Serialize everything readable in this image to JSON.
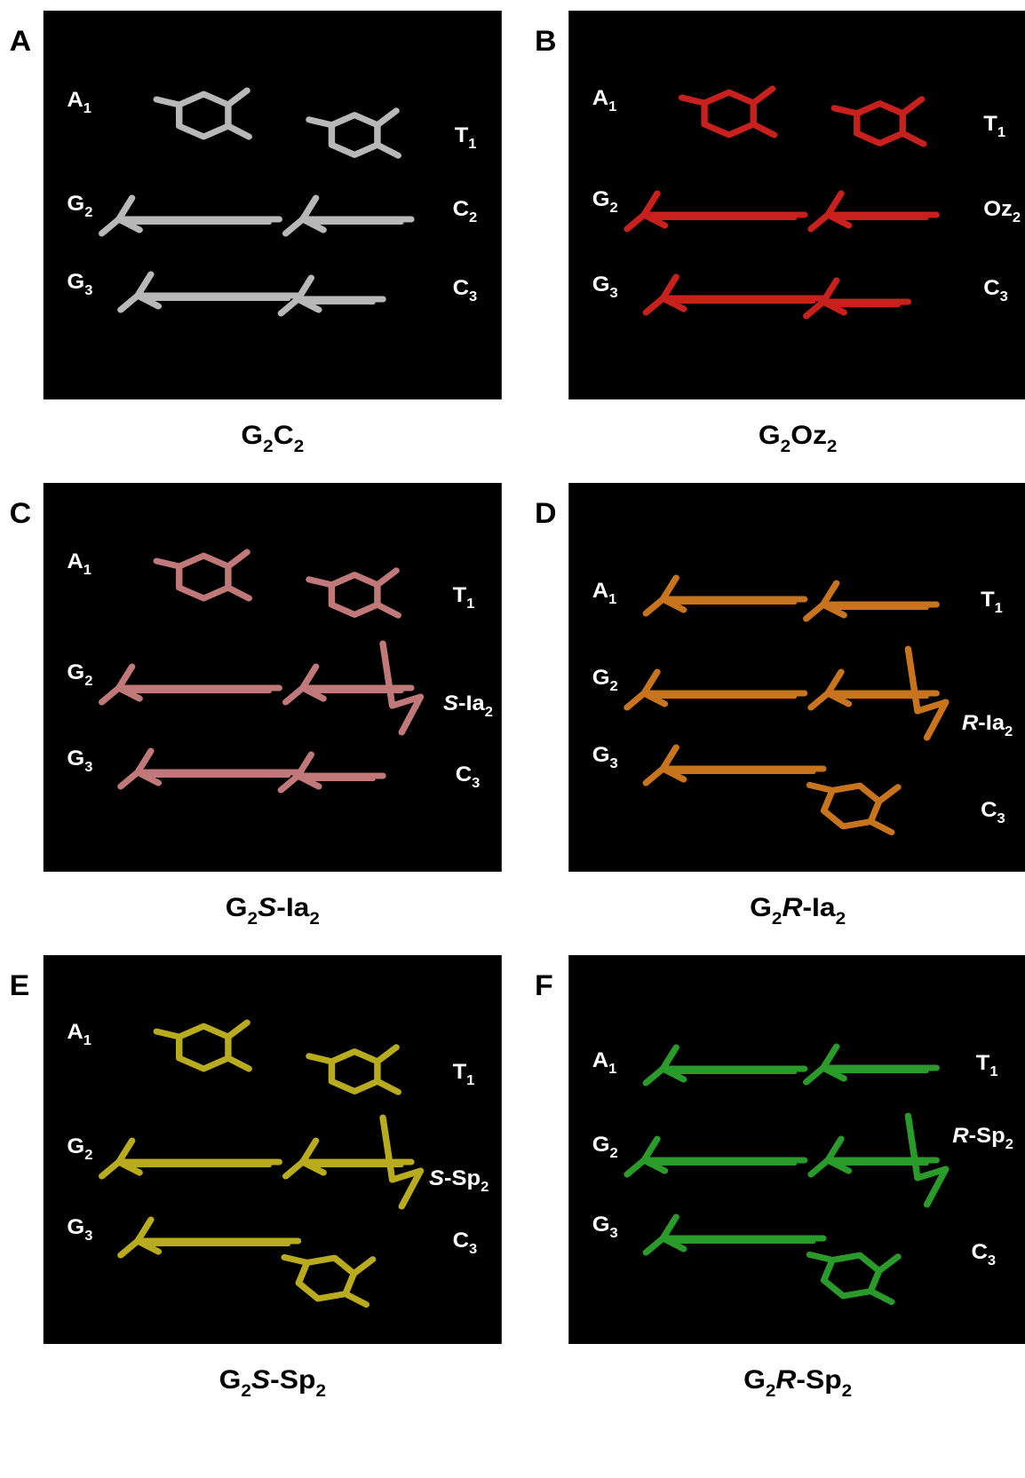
{
  "panels": [
    {
      "letter": "A",
      "color": "#b8b8b8",
      "left_labels": [
        [
          {
            "text": "A"
          },
          {
            "text": "1",
            "sub": true
          }
        ],
        [
          {
            "text": "G"
          },
          {
            "text": "2",
            "sub": true
          }
        ],
        [
          {
            "text": "G"
          },
          {
            "text": "3",
            "sub": true
          }
        ]
      ],
      "right_labels": [
        [
          {
            "text": "T"
          },
          {
            "text": "1",
            "sub": true
          }
        ],
        [
          {
            "text": "C"
          },
          {
            "text": "2",
            "sub": true
          }
        ],
        [
          {
            "text": "C"
          },
          {
            "text": "3",
            "sub": true
          }
        ]
      ],
      "caption": [
        {
          "text": "G"
        },
        {
          "text": "2",
          "sub": true
        },
        {
          "text": "C"
        },
        {
          "text": "2",
          "sub": true
        }
      ]
    },
    {
      "letter": "B",
      "color": "#c8201c",
      "left_labels": [
        [
          {
            "text": "A"
          },
          {
            "text": "1",
            "sub": true
          }
        ],
        [
          {
            "text": "G"
          },
          {
            "text": "2",
            "sub": true
          }
        ],
        [
          {
            "text": "G"
          },
          {
            "text": "3",
            "sub": true
          }
        ]
      ],
      "right_labels": [
        [
          {
            "text": "T"
          },
          {
            "text": "1",
            "sub": true
          }
        ],
        [
          {
            "text": "Oz"
          },
          {
            "text": "2",
            "sub": true
          }
        ],
        [
          {
            "text": "C"
          },
          {
            "text": "3",
            "sub": true
          }
        ]
      ],
      "caption": [
        {
          "text": "G"
        },
        {
          "text": "2",
          "sub": true
        },
        {
          "text": "Oz"
        },
        {
          "text": "2",
          "sub": true
        }
      ]
    },
    {
      "letter": "C",
      "color": "#c07878",
      "left_labels": [
        [
          {
            "text": "A"
          },
          {
            "text": "1",
            "sub": true
          }
        ],
        [
          {
            "text": "G"
          },
          {
            "text": "2",
            "sub": true
          }
        ],
        [
          {
            "text": "G"
          },
          {
            "text": "3",
            "sub": true
          }
        ]
      ],
      "right_labels": [
        [
          {
            "text": "T"
          },
          {
            "text": "1",
            "sub": true
          }
        ],
        [
          {
            "text": "S",
            "italic": true
          },
          {
            "text": "-Ia"
          },
          {
            "text": "2",
            "sub": true
          }
        ],
        [
          {
            "text": "C"
          },
          {
            "text": "3",
            "sub": true
          }
        ]
      ],
      "caption": [
        {
          "text": "G"
        },
        {
          "text": "2",
          "sub": true
        },
        {
          "text": "S",
          "italic": true
        },
        {
          "text": "-Ia"
        },
        {
          "text": "2",
          "sub": true
        }
      ]
    },
    {
      "letter": "D",
      "color": "#c8741e",
      "left_labels": [
        [
          {
            "text": "A"
          },
          {
            "text": "1",
            "sub": true
          }
        ],
        [
          {
            "text": "G"
          },
          {
            "text": "2",
            "sub": true
          }
        ],
        [
          {
            "text": "G"
          },
          {
            "text": "3",
            "sub": true
          }
        ]
      ],
      "right_labels": [
        [
          {
            "text": "T"
          },
          {
            "text": "1",
            "sub": true
          }
        ],
        [
          {
            "text": "R",
            "italic": true
          },
          {
            "text": "-Ia"
          },
          {
            "text": "2",
            "sub": true
          }
        ],
        [
          {
            "text": "C"
          },
          {
            "text": "3",
            "sub": true
          }
        ]
      ],
      "caption": [
        {
          "text": "G"
        },
        {
          "text": "2",
          "sub": true
        },
        {
          "text": "R",
          "italic": true
        },
        {
          "text": "-Ia"
        },
        {
          "text": "2",
          "sub": true
        }
      ]
    },
    {
      "letter": "E",
      "color": "#b8ac1e",
      "left_labels": [
        [
          {
            "text": "A"
          },
          {
            "text": "1",
            "sub": true
          }
        ],
        [
          {
            "text": "G"
          },
          {
            "text": "2",
            "sub": true
          }
        ],
        [
          {
            "text": "G"
          },
          {
            "text": "3",
            "sub": true
          }
        ]
      ],
      "right_labels": [
        [
          {
            "text": "T"
          },
          {
            "text": "1",
            "sub": true
          }
        ],
        [
          {
            "text": "S",
            "italic": true
          },
          {
            "text": "-Sp"
          },
          {
            "text": "2",
            "sub": true
          }
        ],
        [
          {
            "text": "C"
          },
          {
            "text": "3",
            "sub": true
          }
        ]
      ],
      "caption": [
        {
          "text": "G"
        },
        {
          "text": "2",
          "sub": true
        },
        {
          "text": "S",
          "italic": true
        },
        {
          "text": "-Sp"
        },
        {
          "text": "2",
          "sub": true
        }
      ]
    },
    {
      "letter": "F",
      "color": "#2a9a2a",
      "left_labels": [
        [
          {
            "text": "A"
          },
          {
            "text": "1",
            "sub": true
          }
        ],
        [
          {
            "text": "G"
          },
          {
            "text": "2",
            "sub": true
          }
        ],
        [
          {
            "text": "G"
          },
          {
            "text": "3",
            "sub": true
          }
        ]
      ],
      "right_labels": [
        [
          {
            "text": "T"
          },
          {
            "text": "1",
            "sub": true
          }
        ],
        [
          {
            "text": "R",
            "italic": true
          },
          {
            "text": "-Sp"
          },
          {
            "text": "2",
            "sub": true
          }
        ],
        [
          {
            "text": "C"
          },
          {
            "text": "3",
            "sub": true
          }
        ]
      ],
      "caption": [
        {
          "text": "G"
        },
        {
          "text": "2",
          "sub": true
        },
        {
          "text": "R",
          "italic": true
        },
        {
          "text": "-Sp"
        },
        {
          "text": "2",
          "sub": true
        }
      ]
    }
  ]
}
